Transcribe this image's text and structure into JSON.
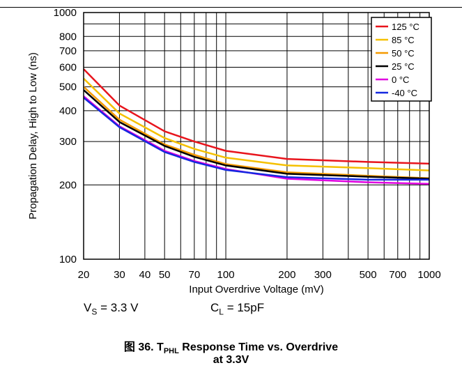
{
  "chart_data": {
    "type": "line",
    "xlabel": "Input Overdrive Voltage (mV)",
    "ylabel": "Propagation Delay, High to Low (ns)",
    "xscale": "log",
    "yscale": "log",
    "xlim": [
      20,
      1000
    ],
    "ylim": [
      100,
      1000
    ],
    "x_ticks": [
      20,
      30,
      40,
      50,
      70,
      100,
      200,
      300,
      500,
      700,
      1000
    ],
    "y_ticks": [
      100,
      200,
      300,
      400,
      500,
      600,
      700,
      800,
      1000
    ],
    "grid": true,
    "legend_position": "top-right",
    "x": [
      20,
      30,
      50,
      70,
      100,
      200,
      500,
      1000
    ],
    "series": [
      {
        "name": "125 °C",
        "color": "#e8141c",
        "values": [
          590,
          420,
          330,
          300,
          275,
          255,
          248,
          244
        ]
      },
      {
        "name": "85 °C",
        "color": "#f5c000",
        "values": [
          540,
          390,
          310,
          280,
          258,
          240,
          234,
          229
        ]
      },
      {
        "name": "50 °C",
        "color": "#f59a00",
        "values": [
          500,
          368,
          292,
          265,
          243,
          225,
          218,
          213
        ]
      },
      {
        "name": "25 °C",
        "color": "#000000",
        "values": [
          485,
          360,
          288,
          260,
          240,
          222,
          216,
          212
        ]
      },
      {
        "name": "0 °C",
        "color": "#e000e0",
        "values": [
          458,
          346,
          275,
          250,
          232,
          212,
          205,
          202
        ]
      },
      {
        "name": "-40 °C",
        "color": "#1428e0",
        "values": [
          452,
          343,
          272,
          248,
          230,
          215,
          210,
          210
        ]
      }
    ]
  },
  "conditions": {
    "vs_label": "V",
    "vs_sub": "S",
    "vs_value": "= 3.3 V",
    "cl_label": "C",
    "cl_sub": "L",
    "cl_value": "= 15pF"
  },
  "caption": {
    "prefix": "图 36. T",
    "sub": "PHL",
    "main": "Response Time vs. Overdrive",
    "line2": "at 3.3V"
  }
}
